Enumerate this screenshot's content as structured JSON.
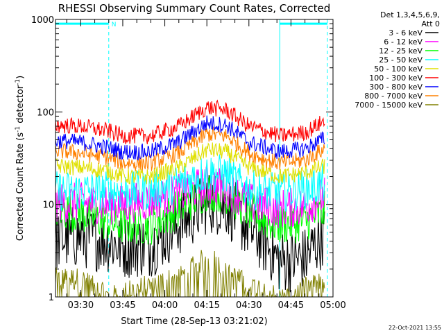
{
  "chart_data": {
    "type": "line",
    "title": "RHESSI Observing Summary Count Rates, Corrected",
    "xlabel": "Start Time (28-Sep-13 03:21:02)",
    "ylabel": "Corrected Count Rate (s⁻¹ detector⁻¹)",
    "ylabel_parts": {
      "main": "Corrected Count Rate (s",
      "sup1": "-1",
      "mid": " detector",
      "sup2": "-1",
      "end": ")"
    },
    "yscale": "log",
    "xlim": [
      "03:21",
      "05:00"
    ],
    "ylim": [
      1,
      1000
    ],
    "x_ticks": [
      "03:30",
      "03:45",
      "04:00",
      "04:15",
      "04:30",
      "04:45",
      "05:00"
    ],
    "y_ticks": [
      "1",
      "10",
      "100",
      "1000"
    ],
    "legend_header": [
      "Det 1,3,4,5,6,9,",
      "Att 0"
    ],
    "legend_position": "right",
    "date_stamp": "22-Oct-2021 13:55",
    "annotations": [
      {
        "text": "N",
        "start": "03:21",
        "end": "03:40",
        "level": 900,
        "color": "#00ffff"
      },
      {
        "text": "",
        "start": "04:41",
        "end": "04:58",
        "level": 900,
        "color": "#00ffff"
      }
    ],
    "night_boundaries": [
      "03:21",
      "03:40",
      "04:41",
      "04:58"
    ],
    "series": [
      {
        "name": "3 - 6 keV",
        "color": "#000000",
        "x": [
          "03:21",
          "03:30",
          "03:40",
          "03:45",
          "03:55",
          "04:05",
          "04:15",
          "04:22",
          "04:30",
          "04:37",
          "04:41",
          "04:50",
          "04:57"
        ],
        "y": [
          4.2,
          4.5,
          4.0,
          3.5,
          3.6,
          6.0,
          10.5,
          10.0,
          5.5,
          3.5,
          2.4,
          2.6,
          5.0
        ]
      },
      {
        "name": "6 - 12 keV",
        "color": "#ff00ff",
        "x": [
          "03:21",
          "03:30",
          "03:40",
          "03:45",
          "03:55",
          "04:05",
          "04:15",
          "04:22",
          "04:30",
          "04:37",
          "04:41",
          "04:50",
          "04:57"
        ],
        "y": [
          10.5,
          10.5,
          10.0,
          10.0,
          11.0,
          13.0,
          16.0,
          15.0,
          10.5,
          9.5,
          9.0,
          9.5,
          12.5
        ]
      },
      {
        "name": "12 - 25 keV",
        "color": "#00ff00",
        "x": [
          "03:21",
          "03:30",
          "03:40",
          "03:45",
          "03:55",
          "04:05",
          "04:15",
          "04:22",
          "04:30",
          "04:37",
          "04:41",
          "04:50",
          "04:57"
        ],
        "y": [
          9.0,
          8.0,
          6.5,
          6.0,
          6.0,
          9.0,
          14.0,
          13.0,
          8.5,
          6.5,
          6.0,
          6.5,
          8.5
        ]
      },
      {
        "name": "25 - 50 keV",
        "color": "#00ffff",
        "x": [
          "03:21",
          "03:30",
          "03:40",
          "03:45",
          "03:55",
          "04:05",
          "04:15",
          "04:22",
          "04:30",
          "04:37",
          "04:41",
          "04:50",
          "04:57"
        ],
        "y": [
          14.0,
          14.0,
          14.0,
          14.0,
          14.0,
          17.0,
          22.0,
          21.0,
          14.5,
          13.5,
          13.5,
          14.5,
          17.0
        ]
      },
      {
        "name": "50 - 100 keV",
        "color": "#e0e000",
        "x": [
          "03:21",
          "03:30",
          "03:40",
          "03:45",
          "03:55",
          "04:05",
          "04:15",
          "04:22",
          "04:30",
          "04:37",
          "04:41",
          "04:50",
          "04:57"
        ],
        "y": [
          26,
          25,
          23,
          20,
          20,
          25,
          39,
          37,
          25,
          22,
          20,
          22,
          26
        ]
      },
      {
        "name": "100 - 300 keV",
        "color": "#ff0000",
        "x": [
          "03:21",
          "03:30",
          "03:40",
          "03:45",
          "03:55",
          "04:05",
          "04:15",
          "04:22",
          "04:30",
          "04:37",
          "04:41",
          "04:50",
          "04:57"
        ],
        "y": [
          72,
          70,
          62,
          55,
          55,
          70,
          112,
          105,
          70,
          60,
          55,
          60,
          80
        ]
      },
      {
        "name": "300 - 800 keV",
        "color": "#0000ff",
        "x": [
          "03:21",
          "03:30",
          "03:40",
          "03:45",
          "03:55",
          "04:05",
          "04:15",
          "04:22",
          "04:30",
          "04:37",
          "04:41",
          "04:50",
          "04:57"
        ],
        "y": [
          49,
          47,
          41,
          37,
          37,
          47,
          76,
          72,
          47,
          40,
          37,
          40,
          52
        ]
      },
      {
        "name": "800 - 7000 keV",
        "color": "#ff8000",
        "x": [
          "03:21",
          "03:30",
          "03:40",
          "03:45",
          "03:55",
          "04:05",
          "04:15",
          "04:22",
          "04:30",
          "04:37",
          "04:41",
          "04:50",
          "04:57"
        ],
        "y": [
          38,
          36,
          32,
          28,
          28,
          36,
          58,
          55,
          36,
          30,
          28,
          30,
          40
        ]
      },
      {
        "name": "7000 - 15000 keV",
        "color": "#808000",
        "x": [
          "03:21",
          "03:30",
          "03:40",
          "04:08",
          "04:12",
          "04:18",
          "04:22",
          "04:41",
          "04:57"
        ],
        "y": [
          1.6,
          1.6,
          1.0,
          1.8,
          2.5,
          2.5,
          1.8,
          1.0,
          1.5
        ]
      }
    ]
  }
}
